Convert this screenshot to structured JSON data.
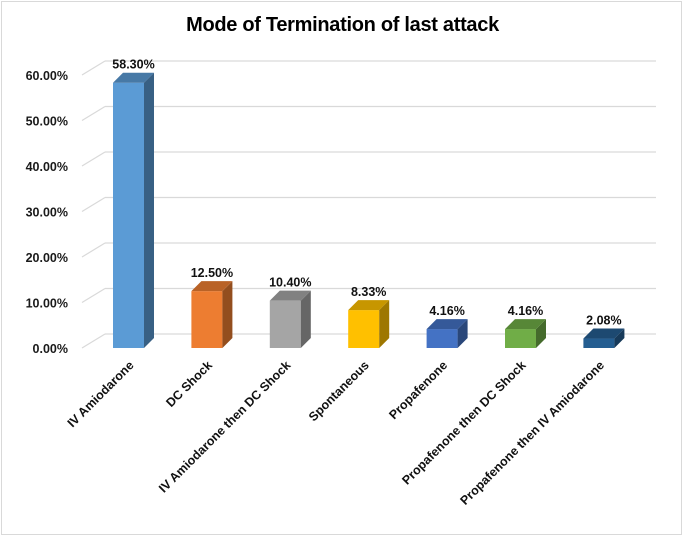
{
  "chart_data": {
    "type": "bar",
    "style": "3d-column",
    "title": "Mode of Termination of last attack",
    "xlabel": "",
    "ylabel": "",
    "ylim": [
      0,
      60
    ],
    "yticks": [
      "0.00%",
      "10.00%",
      "20.00%",
      "30.00%",
      "40.00%",
      "50.00%",
      "60.00%"
    ],
    "grid": true,
    "legend": "none",
    "categories": [
      "IV Amiodarone",
      "DC Shock",
      "IV Amiodarone then DC Shock",
      "Spontaneous",
      "Propafenone",
      "Propafenone then DC Shock",
      "Propafenone then IV Amiodarone"
    ],
    "values": [
      58.3,
      12.5,
      10.4,
      8.33,
      4.16,
      4.16,
      2.08
    ],
    "data_labels": [
      "58.30%",
      "12.50%",
      "10.40%",
      "8.33%",
      "4.16%",
      "4.16%",
      "2.08%"
    ],
    "colors": [
      "#5b9bd5",
      "#ed7d31",
      "#a5a5a5",
      "#ffc000",
      "#4472c4",
      "#70ad47",
      "#255e91"
    ]
  }
}
